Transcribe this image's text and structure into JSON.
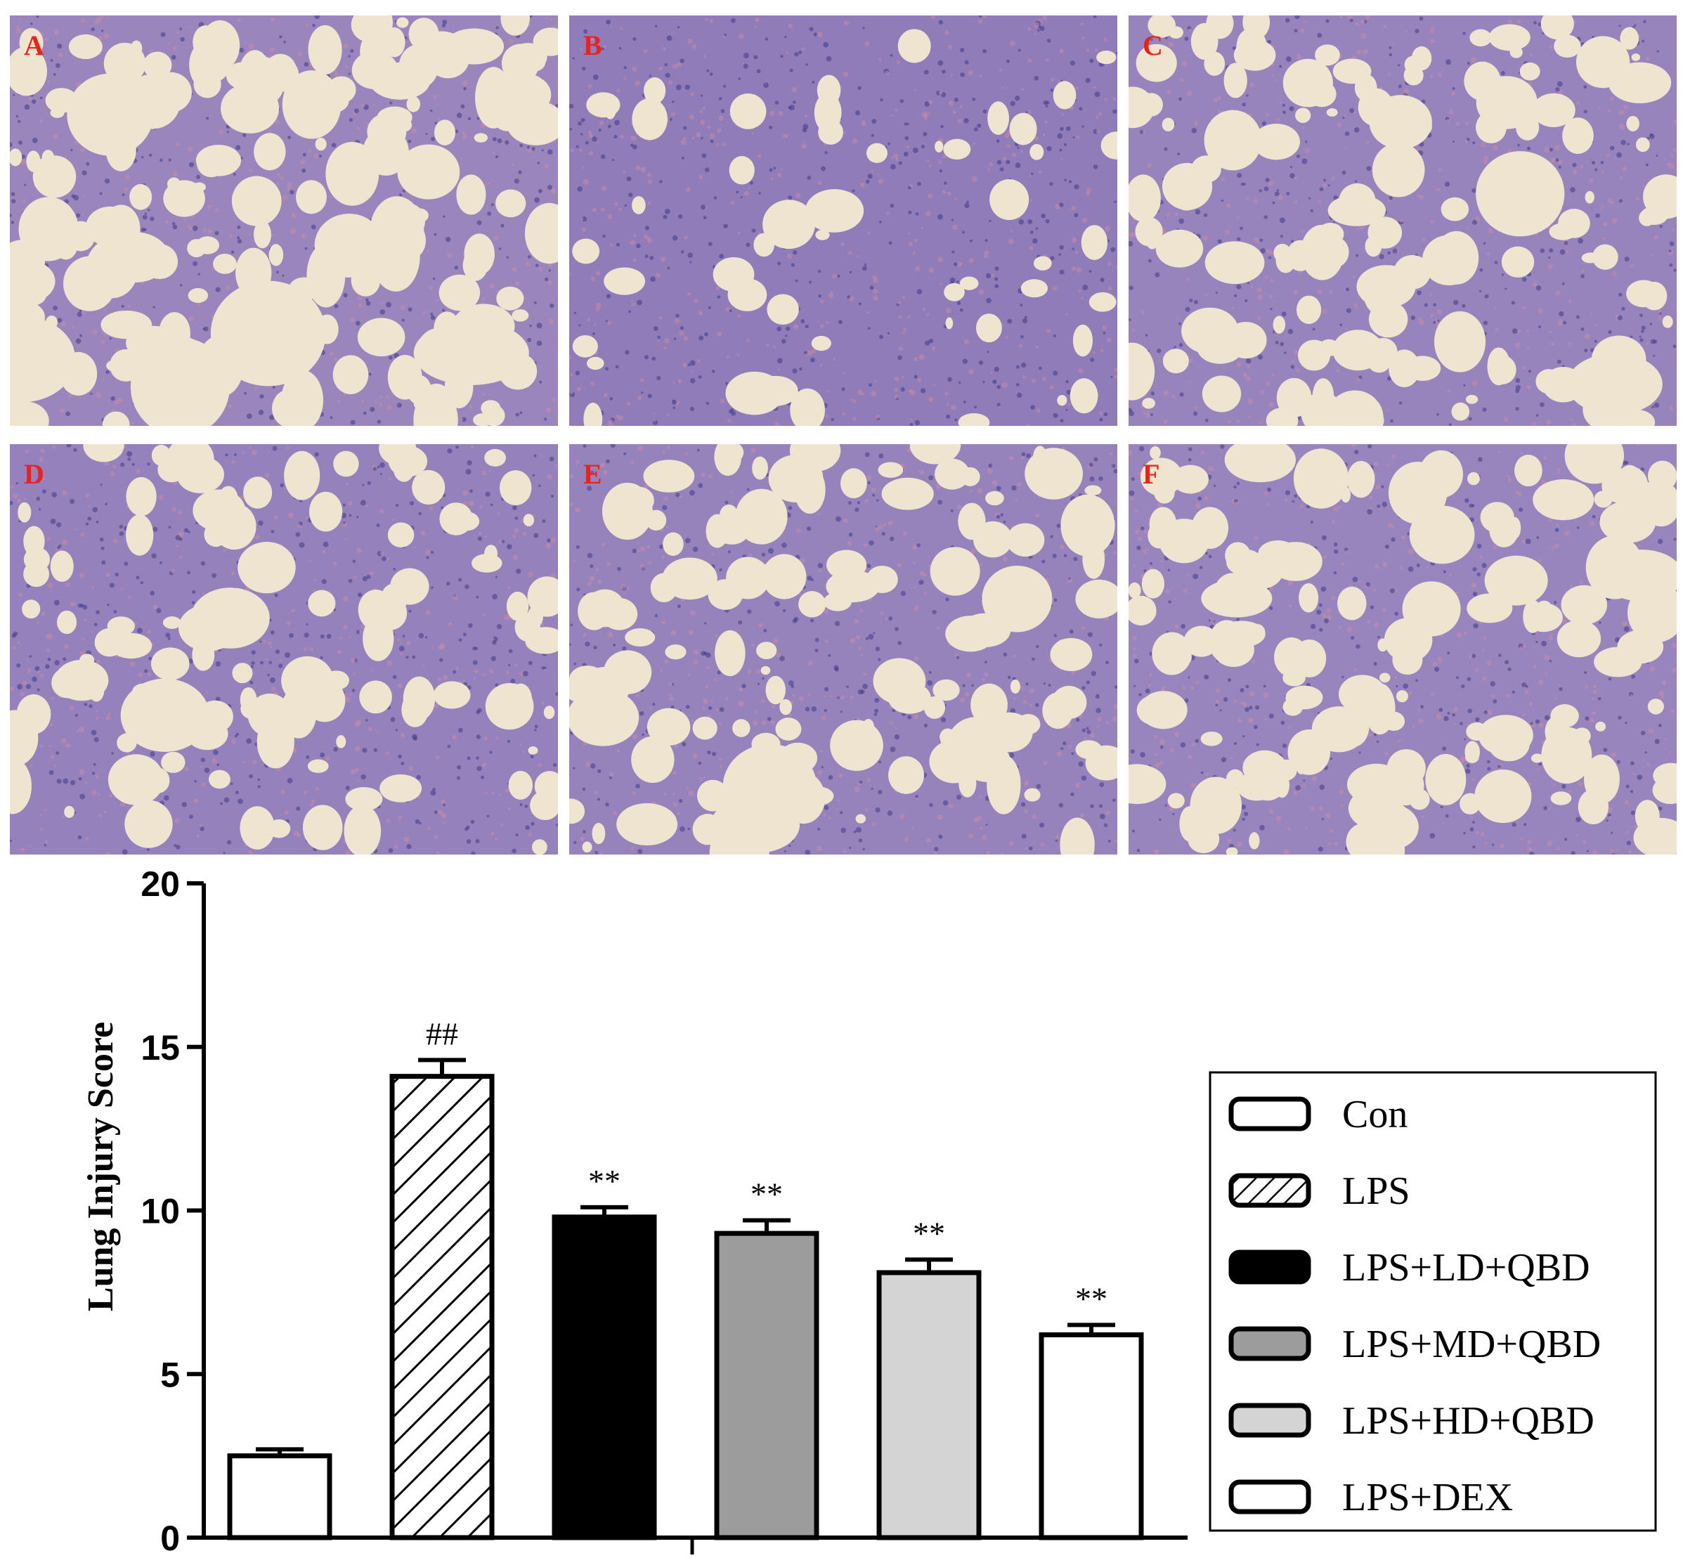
{
  "panels": [
    {
      "label": "A",
      "label_color": "#e8231c",
      "bg": "#efe4cf",
      "tissue": "#9a86bd",
      "density": 0.45
    },
    {
      "label": "B",
      "label_color": "#e8231c",
      "bg": "#efe4cf",
      "tissue": "#8f7cb8",
      "density": 0.92
    },
    {
      "label": "C",
      "label_color": "#e8231c",
      "bg": "#efe4cf",
      "tissue": "#9884bc",
      "density": 0.62
    },
    {
      "label": "D",
      "label_color": "#e8231c",
      "bg": "#efe4cf",
      "tissue": "#9581bb",
      "density": 0.7
    },
    {
      "label": "E",
      "label_color": "#e8231c",
      "bg": "#efe4cf",
      "tissue": "#9783bc",
      "density": 0.66
    },
    {
      "label": "F",
      "label_color": "#e8231c",
      "bg": "#efe4cf",
      "tissue": "#9985bd",
      "density": 0.58
    }
  ],
  "chart_data": {
    "type": "bar",
    "ylabel": "Lung Injury Score",
    "xlabel": "",
    "ylim": [
      0,
      20
    ],
    "yticks": [
      0,
      5,
      10,
      15,
      20
    ],
    "categories": [
      "Con",
      "LPS",
      "LPS+LD+QBD",
      "LPS+MD+QBD",
      "LPS+HD+QBD",
      "LPS+DEX"
    ],
    "values": [
      2.5,
      14.1,
      9.8,
      9.3,
      8.1,
      6.2
    ],
    "errors": [
      0.2,
      0.5,
      0.3,
      0.4,
      0.4,
      0.3
    ],
    "annotations": [
      "",
      "##",
      "**",
      "**",
      "**",
      "**"
    ],
    "fills": [
      "white",
      "hatch",
      "#000000",
      "#9c9c9c",
      "#d4d4d4",
      "white"
    ],
    "legend": {
      "position": "right",
      "entries": [
        "Con",
        "LPS",
        "LPS+LD+QBD",
        "LPS+MD+QBD",
        "LPS+HD+QBD",
        "LPS+DEX"
      ]
    },
    "grid": false
  }
}
